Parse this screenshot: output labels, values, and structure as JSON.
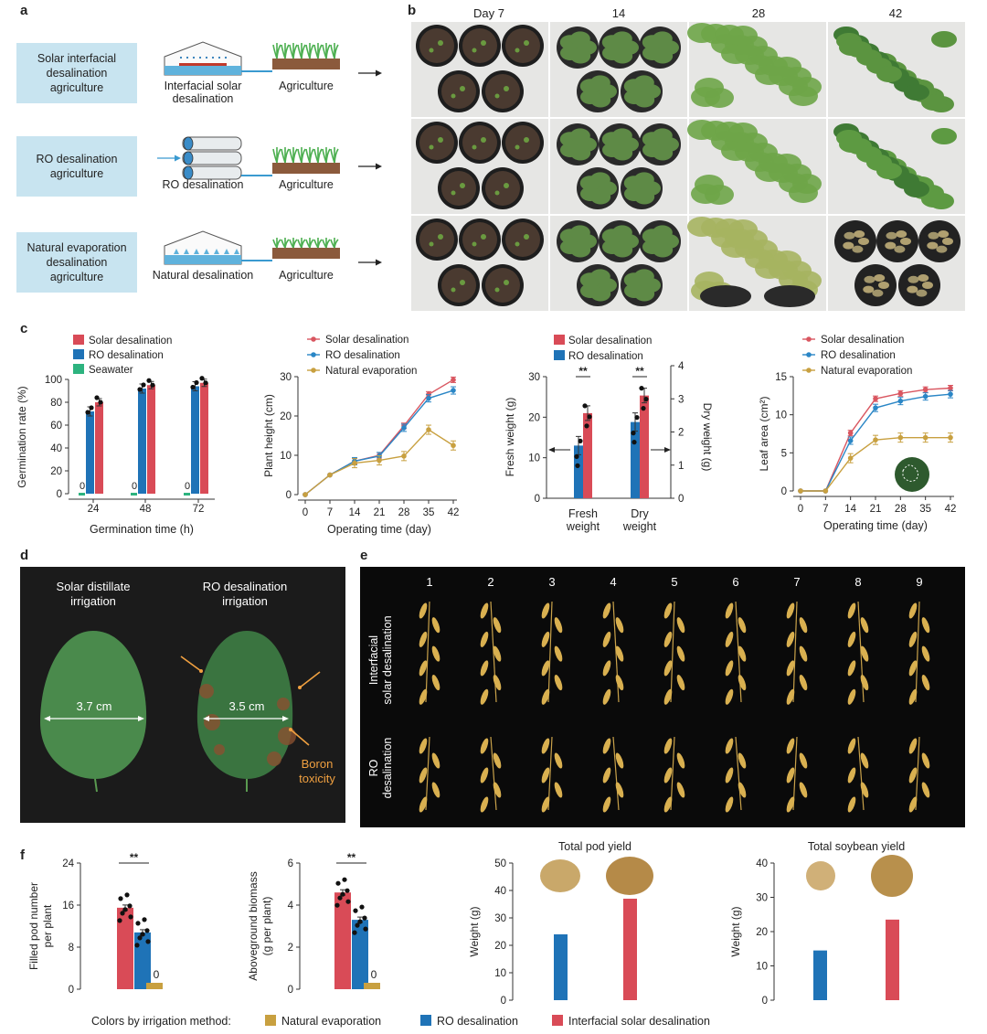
{
  "panel_labels": [
    "a",
    "b",
    "c",
    "d",
    "e",
    "f"
  ],
  "panel_a": {
    "rows": [
      {
        "label_lines": [
          "Solar interfacial",
          "desalination",
          "agriculture"
        ],
        "device_lines": [
          "Interfacial solar",
          "desalination"
        ],
        "agri_label": "Agriculture"
      },
      {
        "label_lines": [
          "RO desalination",
          "agriculture"
        ],
        "device_lines": [
          "RO desalination"
        ],
        "agri_label": "Agriculture"
      },
      {
        "label_lines": [
          "Natural evaporation",
          "desalination",
          "agriculture"
        ],
        "device_lines": [
          "Natural desalination"
        ],
        "agri_label": "Agriculture"
      }
    ],
    "colors": {
      "label_box": "#c8e4f0",
      "water": "#5fb2dc",
      "soil": "#8b5a3c",
      "plant": "#4caf50"
    }
  },
  "panel_b": {
    "column_headers": [
      "Day 7",
      "14",
      "28",
      "42"
    ],
    "photo_colors": [
      [
        "#4a4440",
        "#5e8a46",
        "#6ea548",
        "#5b9440"
      ],
      [
        "#4a4440",
        "#5e8a46",
        "#6ea548",
        "#5d9a42"
      ],
      [
        "#4a4440",
        "#5e8a46",
        "#a6b460",
        "#6a5a48"
      ]
    ]
  },
  "panel_c": {
    "charts": [
      {
        "type": "bar",
        "categories": [
          "24",
          "48",
          "72"
        ],
        "series": [
          {
            "name": "Solar desalination",
            "color": "#d94b57",
            "values": [
              80,
              95,
              97
            ]
          },
          {
            "name": "RO desalination",
            "color": "#1f73b7",
            "values": [
              72,
              92,
              94
            ]
          },
          {
            "name": "Seawater",
            "color": "#2db37f",
            "values": [
              0,
              0,
              0
            ]
          }
        ],
        "zero_labels": [
          "0",
          "0",
          "0"
        ],
        "xlabel": "Germination time (h)",
        "ylabel": "Germination rate (%)",
        "ylim": [
          0,
          100
        ],
        "yticks": [
          "0",
          "20",
          "40",
          "60",
          "80",
          "100"
        ]
      },
      {
        "type": "line",
        "x": [
          "0",
          "7",
          "14",
          "21",
          "28",
          "35",
          "42"
        ],
        "series": [
          {
            "name": "Solar desalination",
            "color": "#d95660",
            "values": [
              0,
              5,
              8.5,
              10,
              17.5,
              25.5,
              29.2
            ]
          },
          {
            "name": "RO desalination",
            "color": "#2a86c6",
            "values": [
              0,
              5,
              8.5,
              9.8,
              17,
              24.5,
              26.5
            ]
          },
          {
            "name": "Natural evaporation",
            "color": "#c8a040",
            "values": [
              0,
              5,
              8,
              8.7,
              9.8,
              16.5,
              12.5
            ]
          }
        ],
        "xlabel": "Operating time (day)",
        "ylabel": "Plant height (cm)",
        "ylim": [
          0,
          30
        ],
        "yticks": [
          "0",
          "10",
          "20",
          "30"
        ]
      },
      {
        "type": "bar",
        "categories": [
          "Fresh\nweight",
          "Dry\nweight"
        ],
        "category_lines": [
          [
            "Fresh",
            "weight"
          ],
          [
            "Dry",
            "weight"
          ]
        ],
        "series": [
          {
            "name": "Solar desalination",
            "color": "#d94b57",
            "values": [
              21,
              3.1
            ]
          },
          {
            "name": "RO desalination",
            "color": "#1f73b7",
            "values": [
              13,
              2.3
            ]
          }
        ],
        "significance": [
          "**",
          "**"
        ],
        "xlabel": "",
        "ylabel": "Fresh weight (g)",
        "ylabel_right": "Dry weight (g)",
        "ylim": [
          0,
          30
        ],
        "ylim_right": [
          0,
          4
        ],
        "yticks": [
          "0",
          "10",
          "20",
          "30"
        ],
        "yticks_right": [
          "0",
          "1",
          "2",
          "3",
          "4"
        ]
      },
      {
        "type": "line",
        "x": [
          "0",
          "7",
          "14",
          "21",
          "28",
          "35",
          "42"
        ],
        "series": [
          {
            "name": "Solar desalination",
            "color": "#d95660",
            "values": [
              0,
              0,
              7.6,
              12.1,
              12.8,
              13.3,
              13.5
            ]
          },
          {
            "name": "RO desalination",
            "color": "#2a86c6",
            "values": [
              0,
              0,
              6.6,
              10.9,
              11.8,
              12.4,
              12.7
            ]
          },
          {
            "name": "Natural evaporation",
            "color": "#c8a040",
            "values": [
              0,
              0,
              4.3,
              6.7,
              7.0,
              7.0,
              7.0
            ]
          }
        ],
        "xlabel": "Operating time (day)",
        "ylabel": "Leaf area (cm²)",
        "ylim": [
          0,
          15
        ],
        "yticks": [
          "0",
          "5",
          "10",
          "15"
        ]
      }
    ]
  },
  "panel_d": {
    "left_title": [
      "Solar distillate",
      "irrigation"
    ],
    "right_title": [
      "RO desalination",
      "irrigation"
    ],
    "left_width": "3.7 cm",
    "right_width": "3.5 cm",
    "annotation": [
      "Boron",
      "toxicity"
    ],
    "colors": {
      "background": "#1b1b1b",
      "leaf": "#4a8a4c",
      "leaf_dark": "#3a7440",
      "damage": "#8a5030",
      "arrow": "#f0a040"
    }
  },
  "panel_e": {
    "numbers": [
      "1",
      "2",
      "3",
      "4",
      "5",
      "6",
      "7",
      "8",
      "9"
    ],
    "row_labels": [
      [
        "Interfacial",
        "solar desalination"
      ],
      [
        "RO",
        "desalination"
      ]
    ],
    "colors": {
      "background": "#0a0a0a",
      "pod": "#d9b050",
      "stem": "#c9a24a"
    }
  },
  "panel_f": {
    "charts": [
      {
        "type": "bar",
        "categories": [
          "Interfacial solar desalination",
          "RO desalination",
          "Natural evaporation"
        ],
        "values": [
          15.5,
          10.8,
          0
        ],
        "colors": [
          "#d94b57",
          "#1f73b7",
          "#c8a040"
        ],
        "zero_label": "0",
        "significance": "**",
        "ylabel": "Filled pod number per plant",
        "ylabel_lines": [
          "Filled pod number",
          "per plant"
        ],
        "ylim": [
          0,
          24
        ],
        "yticks": [
          "0",
          "8",
          "16",
          "24"
        ]
      },
      {
        "type": "bar",
        "categories": [
          "Interfacial solar desalination",
          "RO desalination",
          "Natural evaporation"
        ],
        "values": [
          4.6,
          3.3,
          0
        ],
        "colors": [
          "#d94b57",
          "#1f73b7",
          "#c8a040"
        ],
        "zero_label": "0",
        "significance": "**",
        "ylabel": "Aboveground biomass (g per plant)",
        "ylabel_lines": [
          "Aboveground biomass",
          "(g per plant)"
        ],
        "ylim": [
          0,
          6
        ],
        "yticks": [
          "0",
          "2",
          "4",
          "6"
        ]
      },
      {
        "type": "bar",
        "title": "Total pod yield",
        "categories": [
          "RO desalination",
          "Interfacial solar desalination"
        ],
        "values": [
          24,
          37
        ],
        "colors": [
          "#1f73b7",
          "#d94b57"
        ],
        "ylabel": "Weight (g)",
        "ylim": [
          0,
          50
        ],
        "yticks": [
          "0",
          "10",
          "20",
          "30",
          "40",
          "50"
        ]
      },
      {
        "type": "bar",
        "title": "Total soybean yield",
        "categories": [
          "RO desalination",
          "Interfacial solar desalination"
        ],
        "values": [
          14.5,
          23.5
        ],
        "colors": [
          "#1f73b7",
          "#d94b57"
        ],
        "ylabel": "Weight (g)",
        "ylim": [
          0,
          40
        ],
        "yticks": [
          "0",
          "10",
          "20",
          "30",
          "40"
        ]
      }
    ],
    "legend": {
      "title": "Colors by irrigation method:",
      "items": [
        {
          "label": "Natural evaporation",
          "color": "#c8a040"
        },
        {
          "label": "RO desalination",
          "color": "#1f73b7"
        },
        {
          "label": "Interfacial solar desalination",
          "color": "#d94b57"
        }
      ]
    }
  }
}
